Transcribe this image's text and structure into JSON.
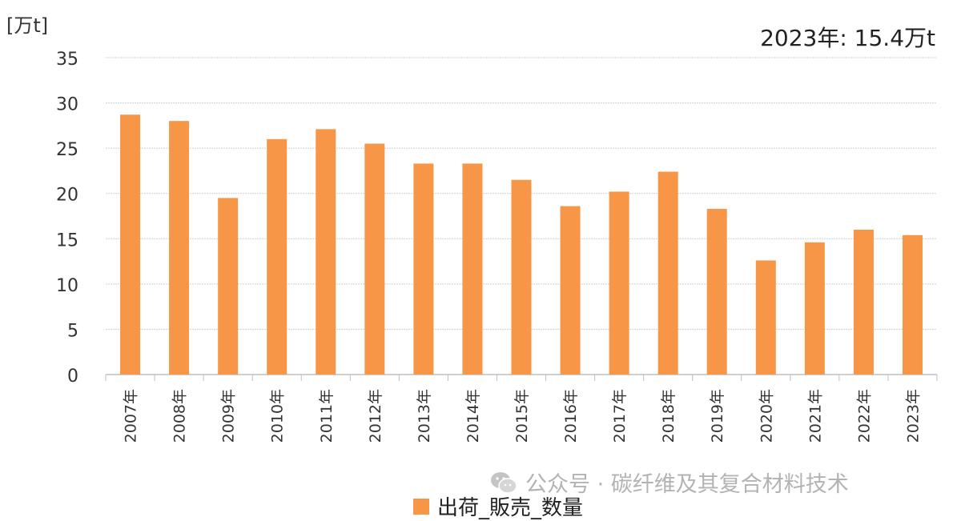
{
  "chart_data": {
    "type": "bar",
    "unit_label": "[万t]",
    "annotation": "2023年: 15.4万t",
    "categories": [
      "2007年",
      "2008年",
      "2009年",
      "2010年",
      "2011年",
      "2012年",
      "2013年",
      "2014年",
      "2015年",
      "2016年",
      "2017年",
      "2018年",
      "2019年",
      "2020年",
      "2021年",
      "2022年",
      "2023年"
    ],
    "series": [
      {
        "name": "出荷_販売_数量",
        "values": [
          28.7,
          28.0,
          19.5,
          26.0,
          27.1,
          25.5,
          23.3,
          23.3,
          21.5,
          18.6,
          20.2,
          22.4,
          18.3,
          12.6,
          14.6,
          16.0,
          15.4
        ]
      }
    ],
    "ylim": [
      0,
      35
    ],
    "yticks": [
      0,
      5,
      10,
      15,
      20,
      25,
      30,
      35
    ],
    "grid": true,
    "legend_position": "bottom",
    "bar_color": "#f79646"
  },
  "watermark": {
    "icon": "wechat-icon",
    "text": "公众号 · 碳纤维及其复合材料技术"
  }
}
